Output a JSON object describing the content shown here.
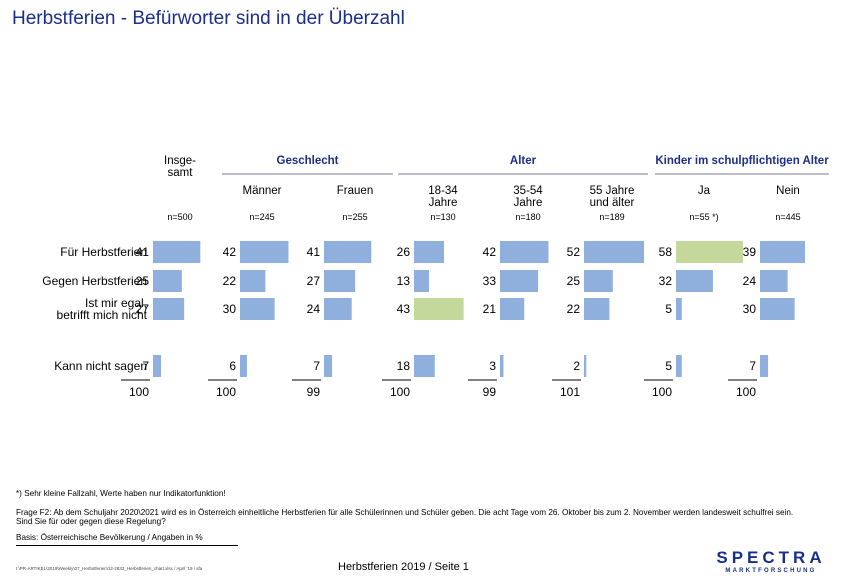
{
  "title": "Herbstferien - Befürworter sind in der Überzahl",
  "colors": {
    "bar": "#8fb0dc",
    "highlight": "#c4d89b",
    "title": "#1a2f8c",
    "rule": "#7a7a99"
  },
  "chart_data": {
    "type": "table",
    "groups": [
      {
        "label": "Insge-\nsamt",
        "style": "plain",
        "columns": [
          0
        ]
      },
      {
        "label": "Geschlecht",
        "style": "bold-blue",
        "columns": [
          1,
          2
        ]
      },
      {
        "label": "Alter",
        "style": "bold-blue",
        "columns": [
          3,
          4,
          5
        ]
      },
      {
        "label": "Kinder im schulpflichtigen Alter",
        "style": "bold-blue",
        "columns": [
          6,
          7
        ]
      }
    ],
    "columns": [
      {
        "label": "",
        "n": "n=500"
      },
      {
        "label": "Männer",
        "n": "n=245"
      },
      {
        "label": "Frauen",
        "n": "n=255"
      },
      {
        "label": "18-34\nJahre",
        "n": "n=130"
      },
      {
        "label": "35-54\nJahre",
        "n": "n=180"
      },
      {
        "label": "55 Jahre\nund älter",
        "n": "n=189"
      },
      {
        "label": "Ja",
        "n": "n=55 *)"
      },
      {
        "label": "Nein",
        "n": "n=445"
      }
    ],
    "rows": [
      {
        "label": "Für Herbstferien",
        "values": [
          41,
          42,
          41,
          26,
          42,
          52,
          58,
          39
        ],
        "highlight": [
          6
        ]
      },
      {
        "label": "Gegen Herbstferien",
        "values": [
          25,
          22,
          27,
          13,
          33,
          25,
          32,
          24
        ],
        "highlight": []
      },
      {
        "label": "Ist mir egal,\nbetrifft mich nicht",
        "values": [
          27,
          30,
          24,
          43,
          21,
          22,
          5,
          30
        ],
        "highlight": [
          3
        ]
      },
      {
        "label": "Kann nicht sagen",
        "values": [
          7,
          6,
          7,
          18,
          3,
          2,
          5,
          7
        ],
        "highlight": []
      }
    ],
    "totals": [
      100,
      100,
      99,
      100,
      99,
      101,
      100,
      100
    ]
  },
  "footnote": "*) Sehr kleine Fallzahl, Werte haben nur Indikatorfunktion!",
  "question_line1": "Frage F2: Ab dem Schuljahr 2020\\2021 wird es in Österreich einheitliche Herbstferien für alle Schülerinnen und Schüler geben. Die acht Tage vom 26. Oktober bis zum 2. November werden landesweit schulfrei sein.",
  "question_line2": "Sind Sie für oder gegen diese Regelung?",
  "basis": "Basis: Österreichische Bevölkerung / Angaben in %",
  "file_path": "I:\\PR-ARTIKEL\\2019\\Weekly\\07_Herbstferien\\12-2833_Herbstferien_chart.xlsx / April '19 / sfa",
  "page_info": "Herbstferien 2019  /  Seite  1",
  "logo": {
    "name": "SPECTRA",
    "sub": "MARKTFORSCHUNG"
  }
}
